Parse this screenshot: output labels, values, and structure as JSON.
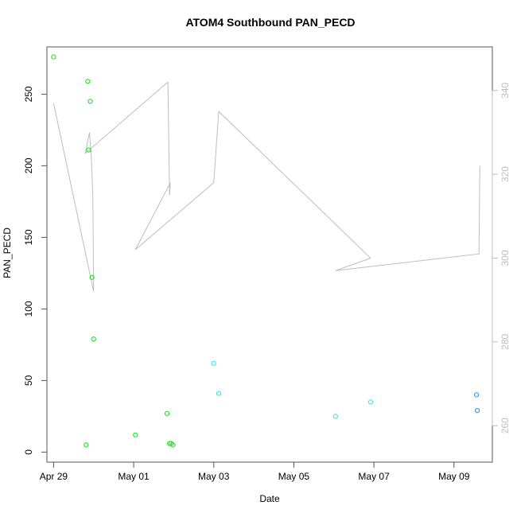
{
  "chart_data": {
    "type": "scatter",
    "title": "ATOM4 Southbound PAN_PECD",
    "xlabel": "Date",
    "ylabel": "PAN_PECD",
    "xlim": [
      "2018-04-28T20:00",
      "2018-05-09T23:00"
    ],
    "ylim": [
      -7,
      283
    ],
    "x_ticks": [
      {
        "date": "2018-04-29",
        "label": "Apr 29"
      },
      {
        "date": "2018-05-01",
        "label": "May 01"
      },
      {
        "date": "2018-05-03",
        "label": "May 03"
      },
      {
        "date": "2018-05-05",
        "label": "May 05"
      },
      {
        "date": "2018-05-07",
        "label": "May 07"
      },
      {
        "date": "2018-05-09",
        "label": "May 09"
      }
    ],
    "y_ticks": [
      0,
      50,
      100,
      150,
      200,
      250
    ],
    "y2_ticks": [
      260,
      280,
      300,
      320,
      340
    ],
    "y2lim": [
      251.3,
      350.4
    ],
    "series": [
      {
        "color": "#00ee00",
        "points": [
          {
            "x": "2018-04-29T00:00",
            "y": 276
          },
          {
            "x": "2018-04-29T19:30",
            "y": 5
          },
          {
            "x": "2018-04-29T20:30",
            "y": 259
          },
          {
            "x": "2018-04-29T21:00",
            "y": 211
          },
          {
            "x": "2018-04-29T22:00",
            "y": 245
          },
          {
            "x": "2018-04-29T23:00",
            "y": 122
          },
          {
            "x": "2018-04-30T00:00",
            "y": 79
          },
          {
            "x": "2018-05-01T01:00",
            "y": 12
          },
          {
            "x": "2018-05-01T20:00",
            "y": 27
          },
          {
            "x": "2018-05-01T21:30",
            "y": 6
          },
          {
            "x": "2018-05-01T22:30",
            "y": 6
          },
          {
            "x": "2018-05-01T23:30",
            "y": 5
          }
        ]
      },
      {
        "color": "#22e8e0",
        "points": [
          {
            "x": "2018-05-03T00:00",
            "y": 62
          },
          {
            "x": "2018-05-03T03:00",
            "y": 41
          },
          {
            "x": "2018-05-06T01:00",
            "y": 25
          },
          {
            "x": "2018-05-06T22:00",
            "y": 35
          }
        ]
      },
      {
        "color": "#1e90ff",
        "points": [
          {
            "x": "2018-05-09T13:30",
            "y": 40
          },
          {
            "x": "2018-05-09T14:00",
            "y": 29
          }
        ]
      }
    ],
    "secondary_line": {
      "color": "#bdbdbd",
      "points": [
        {
          "x": "2018-04-29T00:00",
          "y2": 337
        },
        {
          "x": "2018-04-30T00:00",
          "y2": 292
        },
        {
          "x": "2018-04-29T23:30",
          "y2": 315
        },
        {
          "x": "2018-04-29T22:30",
          "y2": 325
        },
        {
          "x": "2018-04-29T21:30",
          "y2": 330
        },
        {
          "x": "2018-04-29T20:30",
          "y2": 328
        },
        {
          "x": "2018-04-29T19:00",
          "y2": 325
        },
        {
          "x": "2018-05-01T20:30",
          "y2": 342
        },
        {
          "x": "2018-05-01T21:30",
          "y2": 315
        },
        {
          "x": "2018-05-01T22:00",
          "y2": 318
        },
        {
          "x": "2018-05-01T01:00",
          "y2": 302
        },
        {
          "x": "2018-05-03T00:00",
          "y2": 318
        },
        {
          "x": "2018-05-03T03:00",
          "y2": 335
        },
        {
          "x": "2018-05-06T22:00",
          "y2": 300
        },
        {
          "x": "2018-05-06T01:00",
          "y2": 297
        },
        {
          "x": "2018-05-09T15:00",
          "y2": 301
        },
        {
          "x": "2018-05-09T15:30",
          "y2": 322
        }
      ]
    }
  }
}
